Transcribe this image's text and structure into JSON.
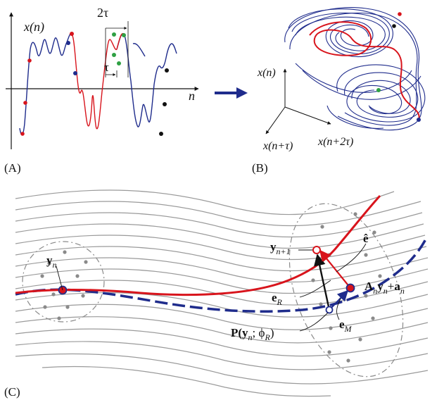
{
  "panel_a": {
    "label": "(A)",
    "y_axis_label": "x(n)",
    "x_axis_label": "n",
    "delay_2tau": "2τ",
    "delay_tau": "τ"
  },
  "panel_b": {
    "label": "(B)",
    "axis_z": "x(n)",
    "axis_y": "x(n+τ)",
    "axis_x": "x(n+2τ)"
  },
  "panel_c": {
    "label": "(C)",
    "y_n": "y",
    "y_n_sub": "n",
    "y_next": "y",
    "y_next_sub": "n+1",
    "e_hat": "ê",
    "map_A": "A",
    "map_n1": "n",
    "map_y": "y",
    "map_n2": "n",
    "map_plus": "+",
    "map_a": "a",
    "map_n3": "n",
    "e_R": "e",
    "e_R_sub": "R",
    "e_M": "e",
    "e_M_sub": "M",
    "P_label_1": "P(",
    "P_y": "y",
    "P_n": "n",
    "P_sep": "; ϕ",
    "P_R": "R",
    "P_close": ")"
  },
  "colors": {
    "red": "#d8141c",
    "blue": "#1f2c8c",
    "green": "#2ea043",
    "gray": "#8a8a8a",
    "black": "#111111"
  }
}
